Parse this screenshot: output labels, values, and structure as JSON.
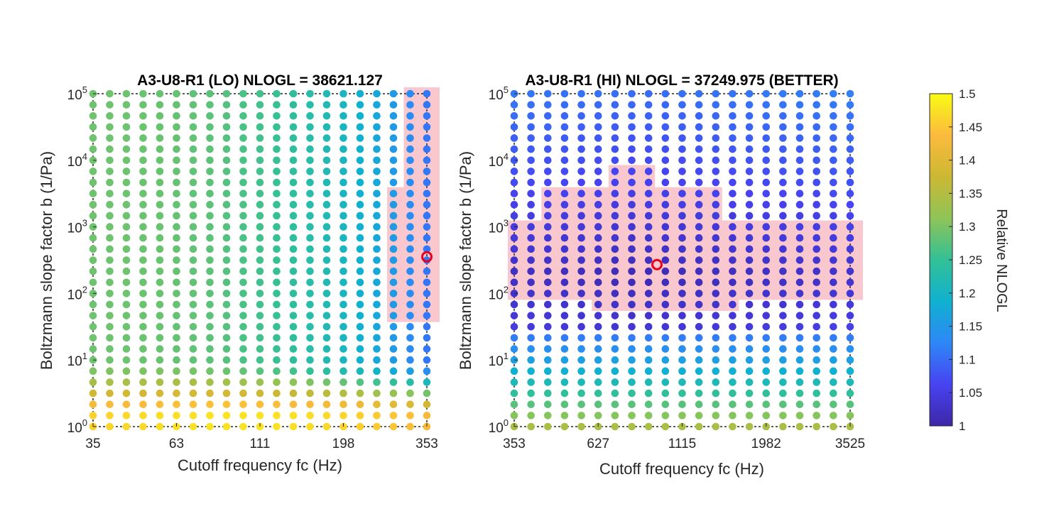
{
  "colormap": {
    "name": "parula",
    "stops": [
      "#3E26A8",
      "#4743F1",
      "#2E87F7",
      "#10B1D0",
      "#33C096",
      "#8EC457",
      "#CCB834",
      "#FCBA3D",
      "#F9FB15"
    ]
  },
  "highlight_color": "#F8C8CE",
  "marker_color": "#E8001C",
  "colorbar": {
    "label": "Relative NLOGL",
    "min": 1,
    "max": 1.5,
    "ticks": [
      "1",
      "1.05",
      "1.1",
      "1.15",
      "1.2",
      "1.25",
      "1.3",
      "1.35",
      "1.4",
      "1.45",
      "1.5"
    ]
  },
  "chart_data": [
    {
      "type": "scatter",
      "title": "A3-U8-R1 (LO) NLOGL = 38621.127",
      "xlabel": "Cutoff frequency fc (Hz)",
      "ylabel": "Boltzmann slope factor b (1/Pa)",
      "x_scale": "log",
      "y_scale": "log",
      "xlim": [
        35,
        353
      ],
      "ylim": [
        1,
        100000
      ],
      "x_ticks": [
        "35",
        "63",
        "111",
        "198",
        "353"
      ],
      "y_ticks": [
        {
          "base": "10",
          "exp": "0"
        },
        {
          "base": "10",
          "exp": "1"
        },
        {
          "base": "10",
          "exp": "2"
        },
        {
          "base": "10",
          "exp": "3"
        },
        {
          "base": "10",
          "exp": "4"
        },
        {
          "base": "10",
          "exp": "5"
        }
      ],
      "grid_points": {
        "nx": 21,
        "ny": 31
      },
      "color_range": [
        1,
        1.5
      ],
      "best_point": {
        "fc": 353,
        "b": 330
      },
      "confidence_region_b_range_at_fc_max": [
        60,
        100000
      ],
      "value_model": "relative NLOGL ≈ 1.29 (green) at high b and low fc, decreasing to ≈ 1.10 toward fc = 353; ≈ 1.40–1.48 (yellow/orange) for b < 10"
    },
    {
      "type": "scatter",
      "title": "A3-U8-R1 (HI) NLOGL = 37249.975 (BETTER)",
      "xlabel": "Cutoff frequency fc (Hz)",
      "ylabel": "Boltzmann slope factor b (1/Pa)",
      "x_scale": "log",
      "y_scale": "log",
      "xlim": [
        353,
        3525
      ],
      "ylim": [
        1,
        100000
      ],
      "x_ticks": [
        "353",
        "627",
        "1115",
        "1982",
        "3525"
      ],
      "y_ticks": [
        {
          "base": "10",
          "exp": "0"
        },
        {
          "base": "10",
          "exp": "1"
        },
        {
          "base": "10",
          "exp": "2"
        },
        {
          "base": "10",
          "exp": "3"
        },
        {
          "base": "10",
          "exp": "4"
        },
        {
          "base": "10",
          "exp": "5"
        }
      ],
      "grid_points": {
        "nx": 21,
        "ny": 31
      },
      "color_range": [
        1,
        1.5
      ],
      "best_point": {
        "fc": 880,
        "b": 220
      },
      "confidence_region_b_range": [
        60,
        3000
      ],
      "value_model": "relative NLOGL ≈ 1.00–1.05 (dark blue) for b ≥ 30, rising through cyan/green to ≈ 1.35 (olive) at b = 1"
    }
  ]
}
